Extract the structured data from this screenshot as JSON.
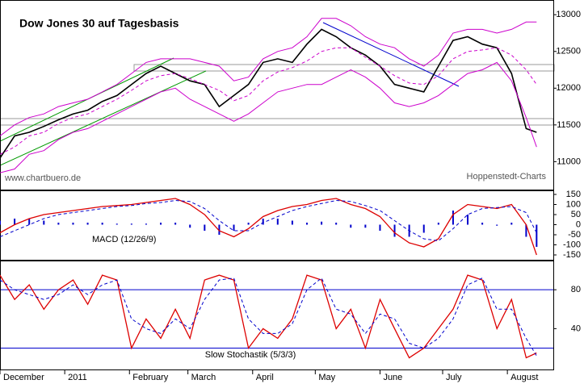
{
  "chart_data": [
    {
      "type": "line",
      "title": "Dow Jones 30 auf Tagesbasis",
      "source": "www.chartbuero.de",
      "credit": "Hoppenstedt-Charts",
      "x": [
        0,
        7,
        14,
        21,
        28,
        35,
        42,
        49,
        56,
        63,
        70,
        77,
        84,
        91,
        98,
        105,
        112,
        119,
        126,
        133,
        140,
        147,
        154,
        161,
        168,
        175,
        182,
        189,
        196,
        203,
        210,
        217,
        224,
        231,
        238,
        245,
        252,
        257
      ],
      "xlim": [
        0,
        265
      ],
      "xticks": [
        {
          "value": 0,
          "label": "December"
        },
        {
          "value": 31,
          "label": "2011"
        },
        {
          "value": 62,
          "label": "February"
        },
        {
          "value": 90,
          "label": "March"
        },
        {
          "value": 121,
          "label": "April"
        },
        {
          "value": 151,
          "label": "May"
        },
        {
          "value": 182,
          "label": "June"
        },
        {
          "value": 212,
          "label": "July"
        },
        {
          "value": 243,
          "label": "August"
        }
      ],
      "ylim": [
        10620,
        13200
      ],
      "yticks": [
        11000,
        11500,
        12000,
        12500,
        13000
      ],
      "series": [
        {
          "name": "Kurs",
          "color": "#000000",
          "width": 1.6,
          "values": [
            11050,
            11350,
            11400,
            11480,
            11570,
            11650,
            11700,
            11820,
            11900,
            12050,
            12200,
            12300,
            12200,
            12100,
            12050,
            11750,
            11900,
            12050,
            12350,
            12400,
            12350,
            12600,
            12800,
            12700,
            12550,
            12450,
            12300,
            12050,
            12000,
            11950,
            12300,
            12650,
            12700,
            12600,
            12550,
            12200,
            11450,
            11400
          ]
        },
        {
          "name": "Bollinger oben",
          "color": "#cc00cc",
          "width": 1,
          "values": [
            11350,
            11500,
            11600,
            11650,
            11750,
            11800,
            11850,
            11950,
            12050,
            12200,
            12350,
            12400,
            12400,
            12400,
            12350,
            12300,
            12100,
            12150,
            12400,
            12500,
            12550,
            12700,
            12950,
            12950,
            12850,
            12700,
            12600,
            12550,
            12400,
            12300,
            12450,
            12750,
            12800,
            12800,
            12750,
            12800,
            12900,
            12900
          ]
        },
        {
          "name": "Bollinger Mitte",
          "color": "#cc00cc",
          "width": 1,
          "dash": true,
          "values": [
            11100,
            11200,
            11350,
            11400,
            11520,
            11600,
            11650,
            11750,
            11850,
            11970,
            12100,
            12170,
            12200,
            12130,
            12050,
            11970,
            11830,
            11900,
            12100,
            12220,
            12280,
            12370,
            12500,
            12550,
            12550,
            12420,
            12300,
            12170,
            12070,
            12050,
            12170,
            12400,
            12500,
            12520,
            12550,
            12450,
            12250,
            12050
          ]
        },
        {
          "name": "Bollinger unten",
          "color": "#cc00cc",
          "width": 1,
          "values": [
            10850,
            10900,
            11100,
            11150,
            11300,
            11400,
            11450,
            11550,
            11650,
            11750,
            11850,
            11950,
            12000,
            11850,
            11750,
            11650,
            11550,
            11650,
            11800,
            11950,
            12000,
            12050,
            12050,
            12150,
            12250,
            12150,
            12000,
            11800,
            11750,
            11800,
            11900,
            12050,
            12200,
            12250,
            12350,
            12100,
            11600,
            11200
          ]
        }
      ]
    },
    {
      "type": "line",
      "label": "MACD (12/26/9)",
      "x": [
        0,
        7,
        14,
        21,
        28,
        35,
        42,
        49,
        56,
        63,
        70,
        77,
        84,
        91,
        98,
        105,
        112,
        119,
        126,
        133,
        140,
        147,
        154,
        161,
        168,
        175,
        182,
        189,
        196,
        203,
        210,
        217,
        224,
        231,
        238,
        245,
        252,
        257
      ],
      "xlim": [
        0,
        265
      ],
      "ylim": [
        -174,
        170
      ],
      "yticks": [
        -150,
        -100,
        -50,
        0,
        50,
        100,
        150
      ],
      "series": [
        {
          "name": "Histogramm",
          "type": "bar",
          "color": "#0000cc",
          "values": [
            20,
            30,
            30,
            20,
            10,
            10,
            10,
            10,
            5,
            5,
            5,
            10,
            10,
            -15,
            -30,
            -50,
            -30,
            10,
            30,
            30,
            20,
            10,
            15,
            10,
            -15,
            -15,
            -30,
            -60,
            -60,
            -40,
            10,
            70,
            50,
            10,
            -5,
            10,
            -60,
            -110
          ]
        },
        {
          "name": "MACD",
          "color": "#dd0000",
          "width": 1.3,
          "values": [
            -40,
            0,
            30,
            50,
            60,
            70,
            80,
            90,
            95,
            100,
            110,
            120,
            130,
            100,
            50,
            -30,
            -60,
            -20,
            40,
            70,
            90,
            100,
            120,
            130,
            100,
            80,
            40,
            -40,
            -90,
            -110,
            -70,
            50,
            100,
            90,
            80,
            100,
            0,
            -150
          ]
        },
        {
          "name": "Signal",
          "color": "#0000cc",
          "width": 1,
          "dash": true,
          "values": [
            -60,
            -30,
            0,
            30,
            50,
            60,
            70,
            80,
            90,
            95,
            105,
            110,
            120,
            115,
            80,
            20,
            -30,
            -30,
            10,
            40,
            70,
            90,
            105,
            120,
            115,
            95,
            70,
            20,
            -30,
            -70,
            -80,
            -20,
            50,
            80,
            85,
            90,
            60,
            -40
          ]
        }
      ]
    },
    {
      "type": "line",
      "label": "Slow Stochastik (5/3/3)",
      "x": [
        0,
        7,
        14,
        21,
        28,
        35,
        42,
        49,
        56,
        63,
        70,
        77,
        84,
        91,
        98,
        105,
        112,
        119,
        126,
        133,
        140,
        147,
        154,
        161,
        168,
        175,
        182,
        189,
        196,
        203,
        210,
        217,
        224,
        231,
        238,
        245,
        252,
        257
      ],
      "xlim": [
        0,
        265
      ],
      "ylim": [
        -2,
        110
      ],
      "yticks": [
        40,
        80
      ],
      "levels": [
        20,
        80
      ],
      "series": [
        {
          "name": "%K",
          "color": "#dd0000",
          "width": 1.3,
          "values": [
            95,
            70,
            85,
            60,
            80,
            90,
            65,
            95,
            90,
            20,
            50,
            30,
            60,
            30,
            90,
            95,
            90,
            20,
            40,
            30,
            50,
            95,
            90,
            40,
            60,
            20,
            70,
            40,
            10,
            20,
            40,
            60,
            95,
            90,
            40,
            70,
            10,
            15
          ]
        },
        {
          "name": "%D",
          "color": "#0000cc",
          "width": 1,
          "dash": true,
          "values": [
            90,
            80,
            75,
            70,
            75,
            85,
            75,
            85,
            90,
            50,
            40,
            35,
            50,
            40,
            70,
            90,
            92,
            50,
            35,
            35,
            45,
            80,
            92,
            60,
            55,
            35,
            55,
            50,
            25,
            20,
            30,
            50,
            85,
            92,
            60,
            60,
            30,
            12
          ]
        }
      ]
    }
  ]
}
